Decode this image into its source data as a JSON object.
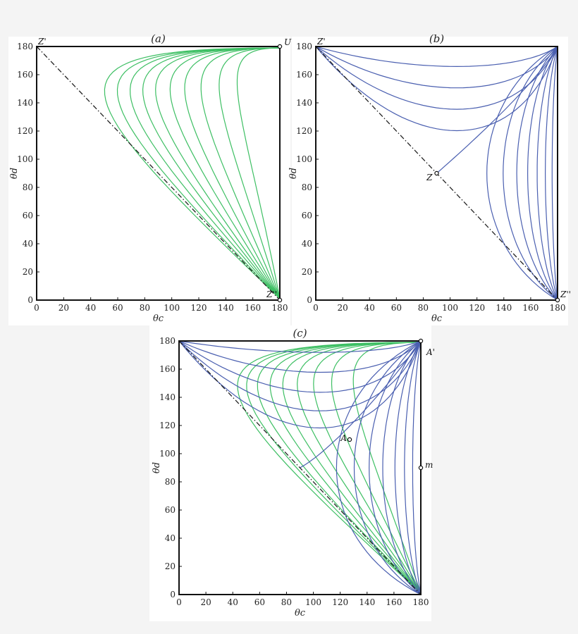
{
  "chart_data": [
    {
      "id": "a",
      "type": "line",
      "title": "(a)",
      "xlabel": "θc",
      "ylabel": "θd",
      "xlim": [
        0,
        180
      ],
      "ylim": [
        0,
        180
      ],
      "xticks": [
        0,
        20,
        40,
        60,
        80,
        100,
        120,
        140,
        160,
        180
      ],
      "yticks": [
        0,
        20,
        40,
        60,
        80,
        100,
        120,
        140,
        160,
        180
      ],
      "grid": false,
      "diagonal": true,
      "families": [
        {
          "color": "#3dbf63",
          "kind": "a",
          "params": [
            0.18,
            0.28,
            0.38,
            0.47,
            0.55,
            0.63,
            0.7,
            0.77,
            0.84,
            0.91
          ]
        }
      ],
      "points": [
        {
          "label": "Z'",
          "x": 0,
          "y": 180,
          "dot": false
        },
        {
          "label": "U",
          "x": 180,
          "y": 180,
          "dot": true
        },
        {
          "label": "Z''",
          "x": 180,
          "y": 0,
          "dot": true
        }
      ]
    },
    {
      "id": "b",
      "type": "line",
      "title": "(b)",
      "xlabel": "θc",
      "ylabel": "θd",
      "xlim": [
        0,
        180
      ],
      "ylim": [
        0,
        180
      ],
      "xticks": [
        0,
        20,
        40,
        60,
        80,
        100,
        120,
        140,
        160,
        180
      ],
      "yticks": [
        0,
        20,
        40,
        60,
        80,
        100,
        120,
        140,
        160,
        180
      ],
      "grid": false,
      "diagonal": true,
      "families": [
        {
          "color": "#4a5fb0",
          "kind": "b-top",
          "params": [
            166,
            151,
            136,
            121
          ]
        },
        {
          "color": "#4a5fb0",
          "kind": "b-right",
          "params": [
            128,
            140,
            150,
            158,
            165,
            171,
            176
          ]
        },
        {
          "color": "#4a5fb0",
          "kind": "b-sep",
          "params": [
            90
          ]
        }
      ],
      "points": [
        {
          "label": "Z'",
          "x": 0,
          "y": 180,
          "dot": false
        },
        {
          "label": "Z",
          "x": 90,
          "y": 90,
          "dot": true
        },
        {
          "label": "Z''",
          "x": 180,
          "y": 0,
          "dot": true
        }
      ]
    },
    {
      "id": "c",
      "type": "line",
      "title": "(c)",
      "xlabel": "θc",
      "ylabel": "θd",
      "xlim": [
        0,
        180
      ],
      "ylim": [
        0,
        180
      ],
      "xticks": [
        0,
        20,
        40,
        60,
        80,
        100,
        120,
        140,
        160,
        180
      ],
      "yticks": [
        0,
        20,
        40,
        60,
        80,
        100,
        120,
        140,
        160,
        180
      ],
      "grid": false,
      "diagonal": true,
      "families": [
        {
          "color": "#3dbf63",
          "kind": "a",
          "params": [
            0.32,
            0.44,
            0.54,
            0.63,
            0.71,
            0.78,
            0.85,
            0.91,
            0.96
          ]
        },
        {
          "color": "#4a5fb0",
          "kind": "b-top",
          "params": [
            172,
            158,
            144,
            131,
            119
          ]
        },
        {
          "color": "#4a5fb0",
          "kind": "b-right",
          "params": [
            118,
            131,
            142,
            152,
            161,
            168,
            174
          ]
        },
        {
          "color": "#4a5fb0",
          "kind": "c-sep",
          "params": [
            90
          ]
        }
      ],
      "points": [
        {
          "label": "A",
          "x": 127,
          "y": 110,
          "dot": true
        },
        {
          "label": "A'",
          "x": 180,
          "y": 180,
          "dot": true
        },
        {
          "label": "m",
          "x": 180,
          "y": 90,
          "dot": true
        }
      ]
    }
  ]
}
